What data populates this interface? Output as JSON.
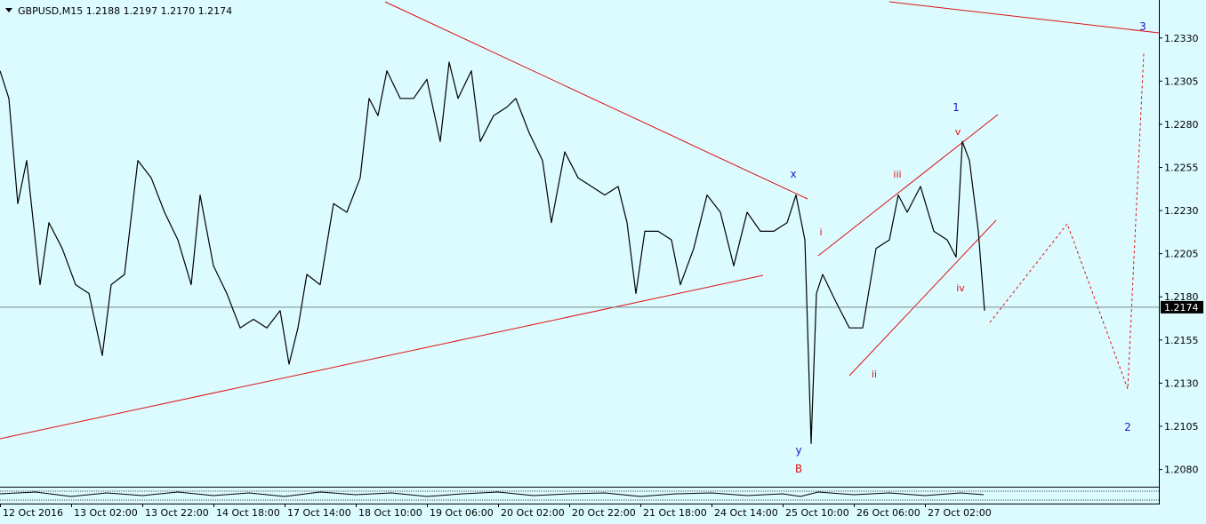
{
  "chart_data": {
    "type": "line",
    "title": "GBPUSD,M15  1.2188 1.2197 1.2170 1.2174",
    "x": [
      0,
      10,
      20,
      30,
      45,
      55,
      70,
      85,
      100,
      115,
      125,
      140,
      155,
      170,
      185,
      200,
      215,
      225,
      240,
      255,
      270,
      285,
      300,
      315,
      325,
      335,
      345,
      360,
      375,
      390,
      405,
      415,
      425,
      435,
      450,
      465,
      480,
      495,
      505,
      515,
      530,
      540,
      555,
      570,
      580,
      595,
      610,
      620,
      635,
      650,
      665,
      680,
      695,
      705,
      715,
      725,
      740,
      755,
      765,
      780,
      795,
      810,
      825,
      840,
      855,
      870,
      885,
      895,
      905,
      912,
      918,
      925,
      940,
      955,
      970,
      985,
      1000,
      1010,
      1020,
      1035,
      1050,
      1065,
      1075,
      1082,
      1090,
      1100,
      1107
    ],
    "values": [
      1.2311,
      1.2295,
      1.2234,
      1.2259,
      1.2187,
      1.2223,
      1.2208,
      1.2187,
      1.2182,
      1.2146,
      1.2187,
      1.2193,
      1.2259,
      1.2249,
      1.2229,
      1.2213,
      1.2187,
      1.2239,
      1.2198,
      1.2182,
      1.2162,
      1.2167,
      1.2162,
      1.2172,
      1.2141,
      1.2162,
      1.2193,
      1.2187,
      1.2234,
      1.2229,
      1.2249,
      1.2295,
      1.2285,
      1.2311,
      1.2295,
      1.2295,
      1.2306,
      1.227,
      1.2316,
      1.2295,
      1.2311,
      1.227,
      1.2285,
      1.229,
      1.2295,
      1.2275,
      1.2259,
      1.2223,
      1.2264,
      1.2249,
      1.2244,
      1.2239,
      1.2244,
      1.2223,
      1.2182,
      1.2218,
      1.2218,
      1.2213,
      1.2187,
      1.2208,
      1.2239,
      1.2229,
      1.2198,
      1.2229,
      1.2218,
      1.2218,
      1.2223,
      1.2239,
      1.2213,
      1.2095,
      1.2182,
      1.2193,
      1.2177,
      1.2162,
      1.2162,
      1.2208,
      1.2213,
      1.2239,
      1.2229,
      1.2244,
      1.2218,
      1.2213,
      1.2203,
      1.227,
      1.2259,
      1.2218,
      1.2172
    ],
    "color": "#000000",
    "last_price": 1.2174,
    "xlim": [
      0,
      1303
    ],
    "xticks": [
      {
        "value": 0,
        "label": "12 Oct 2016"
      },
      {
        "value": 80,
        "label": "13 Oct 02:00"
      },
      {
        "value": 160,
        "label": "13 Oct 22:00"
      },
      {
        "value": 240,
        "label": "14 Oct 18:00"
      },
      {
        "value": 320,
        "label": "17 Oct 14:00"
      },
      {
        "value": 400,
        "label": "18 Oct 10:00"
      },
      {
        "value": 480,
        "label": "19 Oct 06:00"
      },
      {
        "value": 560,
        "label": "20 Oct 02:00"
      },
      {
        "value": 640,
        "label": "20 Oct 22:00"
      },
      {
        "value": 720,
        "label": "21 Oct 18:00"
      },
      {
        "value": 800,
        "label": "24 Oct 14:00"
      },
      {
        "value": 880,
        "label": "25 Oct 10:00"
      },
      {
        "value": 960,
        "label": "26 Oct 06:00"
      },
      {
        "value": 1040,
        "label": "27 Oct 02:00"
      }
    ],
    "ylim": [
      1.207,
      1.2352
    ],
    "yticks": [
      {
        "value": 1.208,
        "label": "1.2080"
      },
      {
        "value": 1.2105,
        "label": "1.2105"
      },
      {
        "value": 1.213,
        "label": "1.2130"
      },
      {
        "value": 1.2155,
        "label": "1.2155"
      },
      {
        "value": 1.218,
        "label": "1.2180"
      },
      {
        "value": 1.2205,
        "label": "1.2205"
      },
      {
        "value": 1.223,
        "label": "1.2230"
      },
      {
        "value": 1.2255,
        "label": "1.2255"
      },
      {
        "value": 1.228,
        "label": "1.2280"
      },
      {
        "value": 1.2305,
        "label": "1.2305"
      },
      {
        "value": 1.233,
        "label": "1.2330"
      }
    ],
    "annotations": [
      {
        "text": "x",
        "color": "#1a1acc"
      },
      {
        "text": "y",
        "color": "#1a1acc"
      },
      {
        "text": "B",
        "color": "#dd1111"
      },
      {
        "text": "i",
        "color": "#dd1111"
      },
      {
        "text": "ii",
        "color": "#dd1111"
      },
      {
        "text": "iii",
        "color": "#dd1111"
      },
      {
        "text": "iv",
        "color": "#dd1111"
      },
      {
        "text": "v",
        "color": "#dd1111"
      },
      {
        "text": "1",
        "color": "#1a1acc"
      },
      {
        "text": "2",
        "color": "#1a1acc"
      },
      {
        "text": "3",
        "color": "#1a1acc"
      }
    ]
  }
}
